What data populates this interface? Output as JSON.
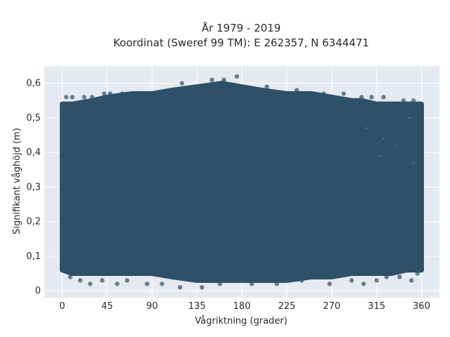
{
  "chart_data": {
    "type": "scatter",
    "title_line1": "År 1979 - 2019",
    "title_line2": "Koordinat (Sweref 99 TM): E 262357, N 6344471",
    "xlabel": "Vågriktning (grader)",
    "ylabel": "Signifikant våghöjd (m)",
    "xlim": [
      -18,
      378
    ],
    "ylim": [
      -0.02,
      0.65
    ],
    "xticks": [
      0,
      45,
      90,
      135,
      180,
      225,
      270,
      315,
      360
    ],
    "xtick_labels": [
      "0",
      "45",
      "90",
      "135",
      "180",
      "225",
      "270",
      "315",
      "360"
    ],
    "yticks": [
      0,
      0.1,
      0.2,
      0.3,
      0.4,
      0.5,
      0.6
    ],
    "ytick_labels": [
      "0",
      "0,1",
      "0,2",
      "0,3",
      "0,4",
      "0,5",
      "0,6"
    ],
    "grid": true,
    "background": "#e5e9f0",
    "marker_color": "#2f5068",
    "bulk_envelope": {
      "x": [
        0,
        10,
        30,
        45,
        70,
        90,
        110,
        135,
        160,
        180,
        200,
        225,
        250,
        270,
        290,
        300,
        315,
        330,
        345,
        360
      ],
      "y_top": [
        0.54,
        0.54,
        0.55,
        0.56,
        0.57,
        0.57,
        0.58,
        0.59,
        0.6,
        0.59,
        0.58,
        0.57,
        0.57,
        0.56,
        0.55,
        0.55,
        0.54,
        0.54,
        0.54,
        0.54
      ],
      "y_bottom": [
        0.06,
        0.05,
        0.05,
        0.05,
        0.05,
        0.05,
        0.04,
        0.03,
        0.03,
        0.03,
        0.03,
        0.03,
        0.04,
        0.04,
        0.05,
        0.05,
        0.05,
        0.05,
        0.06,
        0.06
      ]
    },
    "outliers": [
      {
        "x": 4,
        "y": 0.56
      },
      {
        "x": 10,
        "y": 0.56
      },
      {
        "x": 22,
        "y": 0.56
      },
      {
        "x": 30,
        "y": 0.56
      },
      {
        "x": 42,
        "y": 0.57
      },
      {
        "x": 48,
        "y": 0.57
      },
      {
        "x": 60,
        "y": 0.57
      },
      {
        "x": 75,
        "y": 0.57
      },
      {
        "x": 120,
        "y": 0.6
      },
      {
        "x": 150,
        "y": 0.61
      },
      {
        "x": 162,
        "y": 0.61
      },
      {
        "x": 175,
        "y": 0.62
      },
      {
        "x": 205,
        "y": 0.59
      },
      {
        "x": 235,
        "y": 0.58
      },
      {
        "x": 262,
        "y": 0.57
      },
      {
        "x": 282,
        "y": 0.57
      },
      {
        "x": 300,
        "y": 0.56
      },
      {
        "x": 310,
        "y": 0.56
      },
      {
        "x": 322,
        "y": 0.56
      },
      {
        "x": 342,
        "y": 0.55
      },
      {
        "x": 352,
        "y": 0.55
      },
      {
        "x": 358,
        "y": 0.54
      },
      {
        "x": 20,
        "y": 0.47
      },
      {
        "x": 330,
        "y": 0.44
      },
      {
        "x": 340,
        "y": 0.46
      },
      {
        "x": 318,
        "y": 0.48
      },
      {
        "x": 8,
        "y": 0.04
      },
      {
        "x": 18,
        "y": 0.03
      },
      {
        "x": 28,
        "y": 0.02
      },
      {
        "x": 40,
        "y": 0.03
      },
      {
        "x": 55,
        "y": 0.02
      },
      {
        "x": 65,
        "y": 0.03
      },
      {
        "x": 85,
        "y": 0.02
      },
      {
        "x": 100,
        "y": 0.02
      },
      {
        "x": 118,
        "y": 0.01
      },
      {
        "x": 140,
        "y": 0.01
      },
      {
        "x": 158,
        "y": 0.02
      },
      {
        "x": 190,
        "y": 0.02
      },
      {
        "x": 215,
        "y": 0.02
      },
      {
        "x": 240,
        "y": 0.03
      },
      {
        "x": 268,
        "y": 0.02
      },
      {
        "x": 290,
        "y": 0.03
      },
      {
        "x": 302,
        "y": 0.02
      },
      {
        "x": 315,
        "y": 0.03
      },
      {
        "x": 325,
        "y": 0.04
      },
      {
        "x": 338,
        "y": 0.04
      },
      {
        "x": 350,
        "y": 0.03
      },
      {
        "x": 356,
        "y": 0.05
      }
    ]
  }
}
